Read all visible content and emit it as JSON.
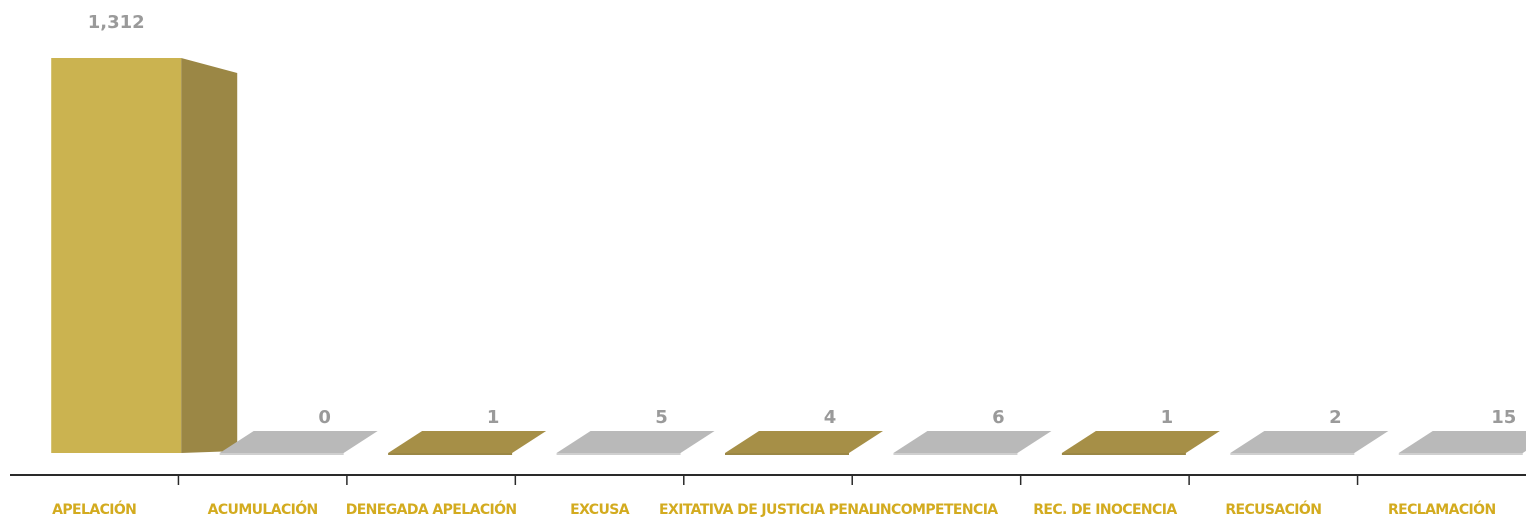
{
  "chart_data": {
    "type": "bar",
    "categories": [
      "APELACIÓN",
      "ACUMULACIÓN",
      "DENEGADA APELACIÓN",
      "EXCUSA",
      "EXITATIVA DE JUSTICIA PENAL",
      "INCOMPETENCIA",
      "REC. DE INOCENCIA",
      "RECUSACIÓN",
      "RECLAMACIÓN"
    ],
    "values": [
      1312,
      0,
      1,
      5,
      4,
      6,
      1,
      2,
      15
    ],
    "value_labels": [
      "1,312",
      "0",
      "1",
      "5",
      "4",
      "6",
      "1",
      "2",
      "15"
    ],
    "title": "",
    "xlabel": "",
    "ylabel": "",
    "ylim": [
      0,
      1312
    ],
    "grid": false,
    "legend": "none",
    "colors": {
      "gold_front": "#cbb350",
      "gold_side": "#9b8745",
      "gold_top": "#a68f47",
      "gray_top": "#b9b9b9",
      "gray_side": "#cfcfcf",
      "axis": "#2a2a2a",
      "label_gold": "#d3ab1f",
      "value_gray": "#9a9a9a"
    },
    "bar_colors": [
      "gold",
      "gray",
      "gold",
      "gray",
      "gold",
      "gray",
      "gold",
      "gray",
      "gray"
    ]
  }
}
